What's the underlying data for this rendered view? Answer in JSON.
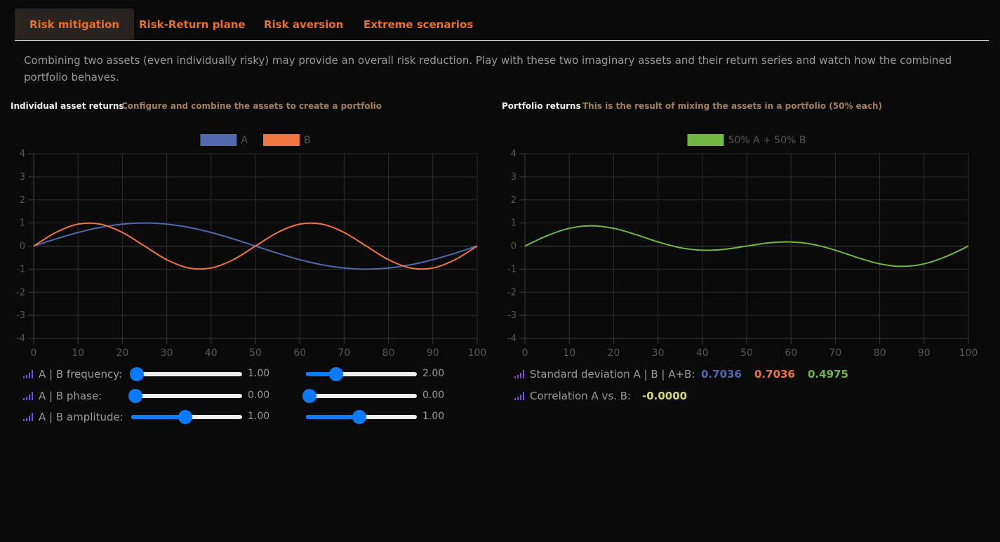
{
  "tabs": [
    "Risk mitigation",
    "Risk-Return plane",
    "Risk aversion",
    "Extreme scenarios"
  ],
  "intro": "Combining two assets (even individually risky) may provide an overall risk reduction. Play with these two imaginary assets and their return series and watch how the combined portfolio behaves.",
  "chart_data": [
    {
      "type": "line",
      "title": "Individual asset returns",
      "subtitle": "Configure and combine the assets to create a portfolio",
      "x": [
        0,
        5,
        10,
        15,
        20,
        25,
        30,
        35,
        40,
        45,
        50,
        55,
        60,
        65,
        70,
        75,
        80,
        85,
        90,
        95,
        100
      ],
      "series": [
        {
          "name": "A",
          "color": "#5068ad",
          "values": [
            0,
            0.31,
            0.59,
            0.81,
            0.95,
            1,
            0.95,
            0.81,
            0.59,
            0.31,
            0,
            -0.31,
            -0.59,
            -0.81,
            -0.95,
            -1,
            -0.95,
            -0.81,
            -0.59,
            -0.31,
            0
          ]
        },
        {
          "name": "B",
          "color": "#ee7440",
          "values": [
            0,
            0.59,
            0.95,
            0.95,
            0.59,
            0,
            -0.59,
            -0.95,
            -0.95,
            -0.59,
            0,
            0.59,
            0.95,
            0.95,
            0.59,
            0,
            -0.59,
            -0.95,
            -0.95,
            -0.59,
            0
          ]
        }
      ],
      "xlim": [
        0,
        100
      ],
      "xticks": [
        0,
        10,
        20,
        30,
        40,
        50,
        60,
        70,
        80,
        90,
        100
      ],
      "ylim": [
        -4,
        4
      ],
      "yticks": [
        -4,
        -3,
        -2,
        -1,
        0,
        1,
        2,
        3,
        4
      ],
      "grid": true
    },
    {
      "type": "line",
      "title": "Portfolio returns",
      "subtitle": "This is the result of mixing the assets in a portfolio (50% each)",
      "x": [
        0,
        5,
        10,
        15,
        20,
        25,
        30,
        35,
        40,
        45,
        50,
        55,
        60,
        65,
        70,
        75,
        80,
        85,
        90,
        95,
        100
      ],
      "series": [
        {
          "name": "50% A + 50% B",
          "color": "#72b740",
          "values": [
            0,
            0.45,
            0.77,
            0.88,
            0.77,
            0.5,
            0.18,
            -0.07,
            -0.18,
            -0.14,
            0,
            0.14,
            0.18,
            0.07,
            -0.18,
            -0.5,
            -0.77,
            -0.88,
            -0.77,
            -0.45,
            0
          ]
        }
      ],
      "xlim": [
        0,
        100
      ],
      "xticks": [
        0,
        10,
        20,
        30,
        40,
        50,
        60,
        70,
        80,
        90,
        100
      ],
      "ylim": [
        -4,
        4
      ],
      "yticks": [
        -4,
        -3,
        -2,
        -1,
        0,
        1,
        2,
        3,
        4
      ],
      "grid": true
    }
  ],
  "controls": [
    {
      "label": "A | B frequency:",
      "a": "1.00",
      "b": "2.00"
    },
    {
      "label": "A | B phase:",
      "a": "0.00",
      "b": "0.00"
    },
    {
      "label": "A | B amplitude:",
      "a": "1.00",
      "b": "1.00"
    }
  ],
  "stats": {
    "std_label": "Standard deviation A | B | A+B:",
    "std_values": [
      "0.7036",
      "0.7036",
      "0.4975"
    ],
    "corr_label": "Correlation A vs. B:",
    "corr_value": "-0.0000"
  }
}
